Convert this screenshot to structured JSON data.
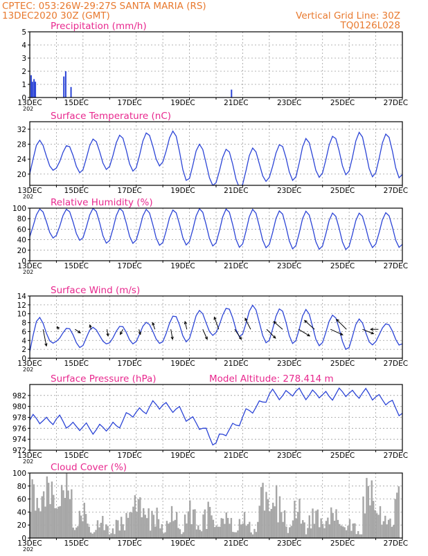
{
  "header": {
    "line1": "CPTEC:   053:26W-29:27S   SANTA MARIA (RS)",
    "line2": "13DEC2020 30Z (GMT)",
    "right1": "Vertical Grid Line: 30Z",
    "right2": "TQ0126L028"
  },
  "x_axis": {
    "tick_labels": [
      "13DEC",
      "15DEC",
      "17DEC",
      "19DEC",
      "21DEC",
      "23DEC",
      "25DEC",
      "27DEC"
    ],
    "start_label": "13DEC",
    "year_fragment": "202"
  },
  "colors": {
    "title": "#e8288e",
    "header": "#e8792e",
    "line": "#2b44d6",
    "cloud": "#a6a6a6",
    "arrow": "#000000"
  },
  "chart_data": [
    {
      "type": "bar",
      "title": "Precipitation  (mm/h)",
      "x_unit": "days since 13DEC 06Z",
      "ylim": [
        0,
        5
      ],
      "yticks": [
        "0",
        "1",
        "2",
        "3",
        "4",
        "5"
      ],
      "points": [
        {
          "x": 0.05,
          "y": 1.7
        },
        {
          "x": 0.1,
          "y": 1.2
        },
        {
          "x": 0.16,
          "y": 1.4
        },
        {
          "x": 0.21,
          "y": 1.2
        },
        {
          "x": 1.28,
          "y": 1.6
        },
        {
          "x": 1.35,
          "y": 2.0
        },
        {
          "x": 1.55,
          "y": 0.8
        },
        {
          "x": 7.58,
          "y": 0.6
        }
      ]
    },
    {
      "type": "line",
      "title": "Surface Temperature  (nC)",
      "ylim": [
        17,
        34
      ],
      "yticks": [
        "20",
        "24",
        "28",
        "32"
      ],
      "ytick_values": [
        20,
        24,
        28,
        32
      ],
      "daily_max": [
        30.5,
        27,
        28.5,
        31,
        29.5,
        33.5,
        28.5,
        27,
        26.5,
        27.5,
        29,
        30,
        31,
        31
      ],
      "daily_min": [
        19,
        21,
        20.5,
        21,
        21,
        22,
        18,
        16.5,
        16.5,
        18,
        18.5,
        19,
        20,
        19
      ]
    },
    {
      "type": "line",
      "title": "Relative Humidity  (%)",
      "ylim": [
        0,
        100
      ],
      "yticks": [
        "0",
        "20",
        "40",
        "60",
        "80",
        "100"
      ],
      "ytick_values": [
        0,
        20,
        40,
        60,
        80,
        100
      ],
      "daily_max": [
        100,
        97,
        100,
        100,
        100,
        95,
        100,
        98,
        100,
        95,
        96,
        92,
        90,
        92
      ],
      "daily_min": [
        40,
        43,
        38,
        32,
        33,
        28,
        30,
        27,
        25,
        24,
        22,
        21,
        21,
        25
      ]
    },
    {
      "type": "line",
      "title": "Surface Wind  (m/s)",
      "ylim": [
        0,
        14
      ],
      "yticks": [
        "0",
        "2",
        "4",
        "6",
        "8",
        "10",
        "12",
        "14"
      ],
      "ytick_values": [
        0,
        2,
        4,
        6,
        8,
        10,
        12,
        14
      ],
      "daily_max": [
        11,
        6.5,
        7,
        7,
        7.5,
        9,
        10.5,
        11,
        12,
        11.5,
        11,
        10.5,
        9,
        8
      ],
      "daily_min": [
        0.5,
        3.5,
        2.5,
        3,
        3.5,
        3,
        4,
        5,
        5,
        3,
        3.5,
        2.5,
        2,
        3
      ],
      "vectors": [
        {
          "x": 0.5,
          "u": 1.5,
          "v": -7.5
        },
        {
          "x": 1.1,
          "u": -0.9,
          "v": 1.2
        },
        {
          "x": 1.7,
          "u": 2.4,
          "v": -1.6
        },
        {
          "x": 2.3,
          "u": -0.5,
          "v": 2.0
        },
        {
          "x": 2.9,
          "u": 0.5,
          "v": -3.0
        },
        {
          "x": 3.5,
          "u": -1.2,
          "v": -2.3
        },
        {
          "x": 4.1,
          "u": 0.7,
          "v": -2.3
        },
        {
          "x": 4.7,
          "u": -1.0,
          "v": 3.0
        },
        {
          "x": 5.3,
          "u": 0.8,
          "v": -4.5
        },
        {
          "x": 5.9,
          "u": -0.8,
          "v": 3.5
        },
        {
          "x": 6.5,
          "u": 2.0,
          "v": -4.5
        },
        {
          "x": 7.1,
          "u": -2.0,
          "v": 5.5
        },
        {
          "x": 7.7,
          "u": 3.0,
          "v": -4.5
        },
        {
          "x": 8.3,
          "u": -2.5,
          "v": 5.0
        },
        {
          "x": 8.9,
          "u": 4.0,
          "v": -4.0
        },
        {
          "x": 9.5,
          "u": -4.0,
          "v": 3.5
        },
        {
          "x": 10.1,
          "u": 5.0,
          "v": -3.0
        },
        {
          "x": 10.7,
          "u": -4.5,
          "v": 4.0
        },
        {
          "x": 11.3,
          "u": 5.5,
          "v": -2.5
        },
        {
          "x": 11.9,
          "u": -4.5,
          "v": 4.5
        },
        {
          "x": 12.5,
          "u": 5.0,
          "v": -2.0
        },
        {
          "x": 13.1,
          "u": -3.5,
          "v": 0.0
        }
      ]
    },
    {
      "type": "line",
      "title": "Surface Pressure  (hPa)",
      "annotation": "Model Altitude: 278.414  m",
      "ylim": [
        972,
        984
      ],
      "yticks": [
        "972",
        "974",
        "976",
        "978",
        "980",
        "982"
      ],
      "ytick_values": [
        972,
        974,
        976,
        978,
        980,
        982
      ],
      "trend": [
        977.5,
        977.5,
        976,
        976,
        979,
        980.5,
        978,
        973.5,
        978,
        982,
        982.5,
        982,
        982.5,
        982,
        979,
        974.5
      ],
      "diurnal_amplitude": 0.8
    },
    {
      "type": "bar",
      "title": "Cloud Cover  (%)",
      "ylim": [
        0,
        100
      ],
      "yticks": [
        "0",
        "20",
        "40",
        "60",
        "80",
        "100"
      ],
      "ytick_values": [
        0,
        20,
        40,
        60,
        80,
        100
      ],
      "segments": [
        {
          "x0": 0.0,
          "x1": 1.6,
          "lo": 40,
          "hi": 100
        },
        {
          "x0": 1.6,
          "x1": 2.2,
          "lo": 10,
          "hi": 55
        },
        {
          "x0": 2.2,
          "x1": 3.6,
          "lo": 5,
          "hi": 35
        },
        {
          "x0": 3.6,
          "x1": 4.5,
          "lo": 30,
          "hi": 70
        },
        {
          "x0": 4.5,
          "x1": 5.8,
          "lo": 5,
          "hi": 50
        },
        {
          "x0": 5.8,
          "x1": 6.8,
          "lo": 10,
          "hi": 60
        },
        {
          "x0": 6.8,
          "x1": 7.6,
          "lo": 15,
          "hi": 40
        },
        {
          "x0": 7.6,
          "x1": 8.6,
          "lo": 5,
          "hi": 40
        },
        {
          "x0": 8.6,
          "x1": 9.3,
          "lo": 40,
          "hi": 90
        },
        {
          "x0": 9.3,
          "x1": 10.6,
          "lo": 5,
          "hi": 65
        },
        {
          "x0": 10.6,
          "x1": 11.8,
          "lo": 15,
          "hi": 50
        },
        {
          "x0": 11.8,
          "x1": 12.5,
          "lo": 5,
          "hi": 30
        },
        {
          "x0": 12.5,
          "x1": 13.2,
          "lo": 30,
          "hi": 100
        },
        {
          "x0": 13.2,
          "x1": 13.7,
          "lo": 15,
          "hi": 35
        },
        {
          "x0": 13.7,
          "x1": 13.9,
          "lo": 60,
          "hi": 100
        }
      ]
    }
  ]
}
